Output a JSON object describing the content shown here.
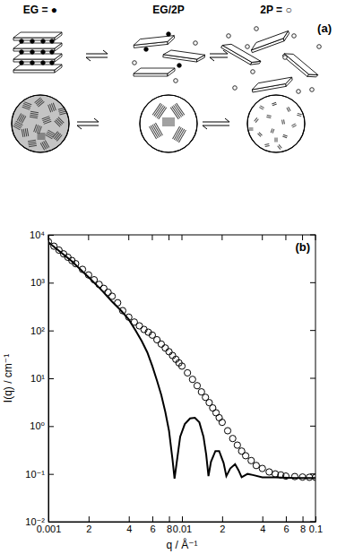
{
  "panel_a": {
    "label": "(a)",
    "labels": [
      "EG = ●",
      "EG/2P",
      "2P = ○"
    ]
  },
  "chart_data": {
    "type": "line",
    "panel_label": "(b)",
    "x_label": "q / Å⁻¹",
    "y_label": "I(q) / cm⁻¹",
    "log": true,
    "grid": false,
    "xlim": [
      0.001,
      0.1
    ],
    "ylim": [
      0.01,
      10000
    ],
    "xticks": [
      0.001,
      {
        "value": 0.002,
        "label": "2"
      },
      {
        "value": 0.004,
        "label": "4"
      },
      {
        "value": 0.006,
        "label": "6"
      },
      {
        "value": 0.008,
        "label": "8"
      },
      0.01,
      {
        "value": 0.02,
        "label": "2"
      },
      {
        "value": 0.04,
        "label": "4"
      },
      {
        "value": 0.06,
        "label": "6"
      },
      {
        "value": 0.08,
        "label": "8"
      },
      0.1
    ],
    "yticks": [
      {
        "value": 0.01,
        "label": "10⁻²"
      },
      {
        "value": 0.1,
        "label": "10⁻¹"
      },
      {
        "value": 1,
        "label": "10⁰"
      },
      {
        "value": 10,
        "label": "10¹"
      },
      {
        "value": 100,
        "label": "10²"
      },
      {
        "value": 1000,
        "label": "10³"
      },
      {
        "value": 10000,
        "label": "10⁴"
      }
    ],
    "series": [
      {
        "type": "scatter",
        "marker": "open-circle",
        "color": "#000000",
        "x": [
          0.001,
          0.0011,
          0.0012,
          0.0013,
          0.0014,
          0.0015,
          0.0016,
          0.0018,
          0.002,
          0.0022,
          0.0024,
          0.0026,
          0.0028,
          0.003,
          0.0033,
          0.0036,
          0.004,
          0.0044,
          0.0048,
          0.0052,
          0.0056,
          0.006,
          0.0065,
          0.007,
          0.0075,
          0.008,
          0.0085,
          0.009,
          0.0095,
          0.01,
          0.011,
          0.012,
          0.013,
          0.014,
          0.015,
          0.016,
          0.017,
          0.018,
          0.019,
          0.02,
          0.022,
          0.024,
          0.026,
          0.028,
          0.03,
          0.033,
          0.036,
          0.04,
          0.045,
          0.05,
          0.055,
          0.06,
          0.07,
          0.08,
          0.09,
          0.1
        ],
        "values": [
          7200,
          5800,
          4800,
          4000,
          3400,
          2900,
          2500,
          1900,
          1450,
          1150,
          920,
          760,
          630,
          520,
          380,
          260,
          190,
          150,
          125,
          105,
          92,
          80,
          64,
          52,
          43,
          36,
          30,
          25,
          21,
          18,
          13,
          9.5,
          7,
          5.2,
          4,
          3.1,
          2.4,
          1.9,
          1.5,
          1.2,
          0.8,
          0.55,
          0.4,
          0.3,
          0.24,
          0.19,
          0.15,
          0.13,
          0.11,
          0.1,
          0.095,
          0.09,
          0.088,
          0.086,
          0.085,
          0.085
        ]
      },
      {
        "type": "line",
        "line_style": "solid",
        "color": "#000000",
        "x": [
          0.001,
          0.0015,
          0.002,
          0.0025,
          0.003,
          0.0035,
          0.004,
          0.0045,
          0.005,
          0.0055,
          0.006,
          0.0065,
          0.007,
          0.0075,
          0.008,
          0.0085,
          0.0088,
          0.0092,
          0.0097,
          0.0105,
          0.0115,
          0.0125,
          0.0135,
          0.0145,
          0.0152,
          0.0158,
          0.0165,
          0.0178,
          0.019,
          0.0205,
          0.0215,
          0.023,
          0.025,
          0.0265,
          0.028,
          0.031,
          0.034,
          0.04,
          0.05,
          0.07,
          0.1
        ],
        "values": [
          7000,
          2800,
          1300,
          700,
          400,
          260,
          170,
          100,
          60,
          35,
          18,
          9,
          4.5,
          2,
          0.8,
          0.2,
          0.08,
          0.2,
          0.6,
          1.1,
          1.45,
          1.5,
          1.2,
          0.6,
          0.25,
          0.09,
          0.18,
          0.3,
          0.3,
          0.17,
          0.09,
          0.13,
          0.16,
          0.12,
          0.085,
          0.1,
          0.095,
          0.085,
          0.085,
          0.082,
          0.082
        ]
      }
    ]
  }
}
